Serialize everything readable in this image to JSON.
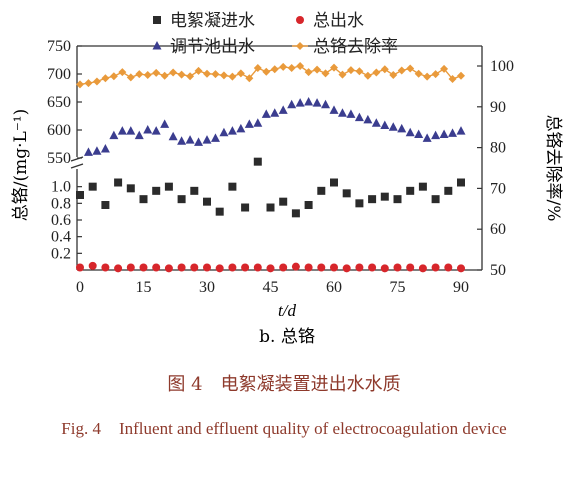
{
  "chart_data": {
    "type": "scatter",
    "subtitle": "b. 总铬",
    "xlabel": "t/d",
    "ylabel": "总铬/(mg·L⁻¹)",
    "ylabel_right": "总铬去除率/%",
    "xlim": [
      0,
      92
    ],
    "x_ticks": [
      "0",
      "15",
      "30",
      "45",
      "60",
      "75",
      "90"
    ],
    "y_axis_break": "between 1.0 and 550",
    "y_lower_range": [
      0,
      1.2
    ],
    "y_lower_ticks": [
      "0.2",
      "0.4",
      "0.6",
      "0.8",
      "1.0"
    ],
    "y_upper_range": [
      550,
      750
    ],
    "y_upper_ticks": [
      "550",
      "600",
      "650",
      "700",
      "750"
    ],
    "y_right_range": [
      50,
      100
    ],
    "y_right_ticks": [
      "50",
      "60",
      "70",
      "80",
      "90",
      "100"
    ],
    "legend_position": "top",
    "series": [
      {
        "name": "电絮凝进水",
        "marker": "square",
        "color": "#2b2b2b",
        "axis": "left-lower",
        "x": [
          0,
          3,
          6,
          9,
          12,
          15,
          18,
          21,
          24,
          27,
          30,
          33,
          36,
          39,
          42,
          45,
          48,
          51,
          54,
          57,
          60,
          63,
          66,
          69,
          72,
          75,
          78,
          81,
          84,
          87,
          90
        ],
        "values": [
          0.9,
          1.0,
          0.78,
          1.05,
          0.98,
          0.85,
          0.95,
          1.0,
          0.85,
          0.95,
          0.82,
          0.7,
          1.0,
          0.75,
          1.3,
          0.75,
          0.82,
          0.68,
          0.78,
          0.95,
          1.05,
          0.92,
          0.8,
          0.85,
          0.88,
          0.85,
          0.95,
          1.0,
          0.85,
          0.95,
          1.05
        ]
      },
      {
        "name": "总出水",
        "marker": "circle",
        "color": "#d7262b",
        "axis": "left-lower",
        "x": [
          0,
          3,
          6,
          9,
          12,
          15,
          18,
          21,
          24,
          27,
          30,
          33,
          36,
          39,
          42,
          45,
          48,
          51,
          54,
          57,
          60,
          63,
          66,
          69,
          72,
          75,
          78,
          81,
          84,
          87,
          90
        ],
        "values": [
          0.03,
          0.05,
          0.03,
          0.02,
          0.03,
          0.03,
          0.03,
          0.02,
          0.03,
          0.03,
          0.03,
          0.02,
          0.03,
          0.03,
          0.03,
          0.02,
          0.03,
          0.04,
          0.03,
          0.03,
          0.03,
          0.02,
          0.03,
          0.03,
          0.02,
          0.03,
          0.03,
          0.02,
          0.03,
          0.03,
          0.02
        ]
      },
      {
        "name": "调节池出水",
        "marker": "triangle",
        "color": "#3b3d8f",
        "axis": "left-upper",
        "x": [
          2,
          4,
          6,
          8,
          10,
          12,
          14,
          16,
          18,
          20,
          22,
          24,
          26,
          28,
          30,
          32,
          34,
          36,
          38,
          40,
          42,
          44,
          46,
          48,
          50,
          52,
          54,
          56,
          58,
          60,
          62,
          64,
          66,
          68,
          70,
          72,
          74,
          76,
          78,
          80,
          82,
          84,
          86,
          88,
          90
        ],
        "values": [
          560,
          562,
          566,
          590,
          598,
          598,
          590,
          600,
          598,
          610,
          588,
          580,
          582,
          578,
          582,
          585,
          595,
          598,
          602,
          610,
          612,
          628,
          630,
          635,
          645,
          648,
          650,
          648,
          645,
          635,
          630,
          628,
          622,
          618,
          612,
          608,
          605,
          602,
          595,
          592,
          585,
          590,
          592,
          594,
          598
        ]
      },
      {
        "name": "总铬去除率",
        "marker": "diamond-line",
        "color": "#e99a3b",
        "axis": "right",
        "x": [
          0,
          2,
          4,
          6,
          8,
          10,
          12,
          14,
          16,
          18,
          20,
          22,
          24,
          26,
          28,
          30,
          32,
          34,
          36,
          38,
          40,
          42,
          44,
          46,
          48,
          50,
          52,
          54,
          56,
          58,
          60,
          62,
          64,
          66,
          68,
          70,
          72,
          74,
          76,
          78,
          80,
          82,
          84,
          86,
          88,
          90
        ],
        "values": [
          95.5,
          95.8,
          96.2,
          97.0,
          97.5,
          98.5,
          97.2,
          98.0,
          97.8,
          98.3,
          97.6,
          98.4,
          97.9,
          97.5,
          98.8,
          98.1,
          98.0,
          97.7,
          97.4,
          98.2,
          97.0,
          99.5,
          98.6,
          99.2,
          99.8,
          99.5,
          100.0,
          98.5,
          99.1,
          98.2,
          99.6,
          97.9,
          99.0,
          98.7,
          97.6,
          98.4,
          99.2,
          97.8,
          98.9,
          99.4,
          98.1,
          97.4,
          98.0,
          99.3,
          96.8,
          97.6
        ]
      }
    ]
  },
  "caption": {
    "figure_cn": "图 4　电絮凝装置进出水水质",
    "figure_en_label": "Fig. 4",
    "figure_en_text": "Influent and effluent quality of electrocoagulation device"
  }
}
